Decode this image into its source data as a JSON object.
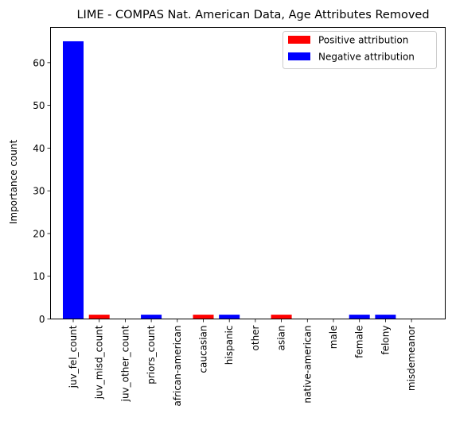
{
  "chart_data": {
    "type": "bar",
    "title": "LIME - COMPAS Nat. American Data, Age Attributes Removed",
    "xlabel": "",
    "ylabel": "Importance count",
    "ylim": [
      0,
      68.25
    ],
    "yticks": [
      0,
      10,
      20,
      30,
      40,
      50,
      60
    ],
    "categories": [
      "juv_fel_count",
      "juv_misd_count",
      "juv_other_count",
      "priors_count",
      "african-american",
      "caucasian",
      "hispanic",
      "other",
      "asian",
      "native-american",
      "male",
      "female",
      "felony",
      "misdemeanor"
    ],
    "values": [
      65,
      1,
      0,
      1,
      0,
      1,
      1,
      0,
      1,
      0,
      0,
      1,
      1,
      0
    ],
    "bar_sign": [
      "negative",
      "positive",
      "negative",
      "negative",
      "negative",
      "positive",
      "negative",
      "negative",
      "positive",
      "negative",
      "negative",
      "negative",
      "negative",
      "negative"
    ],
    "legend": {
      "position": "top-right",
      "entries": [
        {
          "label": "Positive attribution",
          "color": "#ff0000"
        },
        {
          "label": "Negative attribution",
          "color": "#0000ff"
        }
      ]
    },
    "colors": {
      "positive": "#ff0000",
      "negative": "#0000ff"
    },
    "grid": false
  }
}
